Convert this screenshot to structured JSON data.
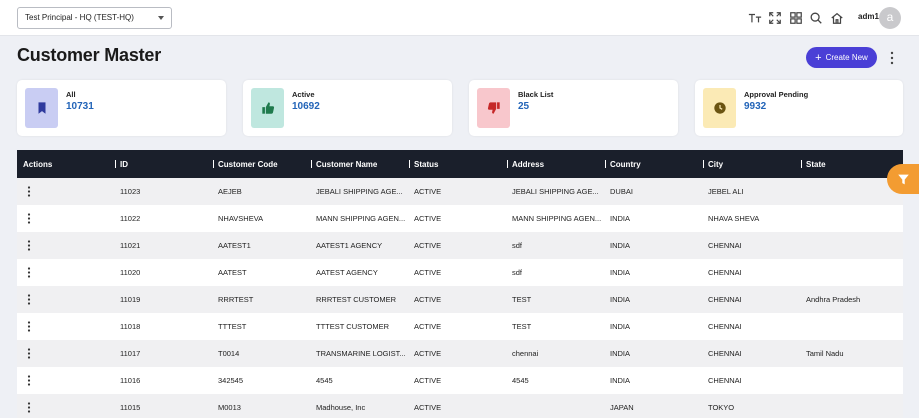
{
  "header": {
    "principal_value": "Test Principal - HQ  (TEST-HQ)",
    "username": "adm1",
    "avatar_initial": "a",
    "icons": [
      "text-size-icon",
      "fullscreen-icon",
      "apps-grid-icon",
      "search-icon",
      "home-icon"
    ]
  },
  "page": {
    "title": "Customer Master",
    "create_label": "Create New"
  },
  "cards": [
    {
      "label": "All",
      "value": "10731",
      "icon": "bookmark-icon",
      "bg": "#c9cdf3",
      "fg": "#2f3a9e"
    },
    {
      "label": "Active",
      "value": "10692",
      "icon": "thumbs-up-icon",
      "bg": "#bfe7df",
      "fg": "#1f7a4d"
    },
    {
      "label": "Black List",
      "value": "25",
      "icon": "thumbs-down-icon",
      "bg": "#f8c7cc",
      "fg": "#c62828"
    },
    {
      "label": "Approval Pending",
      "value": "9932",
      "icon": "clock-icon",
      "bg": "#fbeab5",
      "fg": "#6b5411"
    }
  ],
  "table": {
    "columns": [
      "Actions",
      "ID",
      "Customer Code",
      "Customer Name",
      "Status",
      "Address",
      "Country",
      "City",
      "State"
    ],
    "rows": [
      [
        "11023",
        "AEJEB",
        "JEBALI SHIPPING AGE...",
        "ACTIVE",
        "JEBALI SHIPPING AGE...",
        "DUBAI",
        "JEBEL ALI",
        ""
      ],
      [
        "11022",
        "NHAVSHEVA",
        "MANN SHIPPING AGEN...",
        "ACTIVE",
        "MANN SHIPPING AGEN...",
        "INDIA",
        "NHAVA SHEVA",
        ""
      ],
      [
        "11021",
        "AATEST1",
        "AATEST1 AGENCY",
        "ACTIVE",
        "sdf",
        "INDIA",
        "CHENNAI",
        ""
      ],
      [
        "11020",
        "AATEST",
        "AATEST AGENCY",
        "ACTIVE",
        "sdf",
        "INDIA",
        "CHENNAI",
        ""
      ],
      [
        "11019",
        "RRRTEST",
        "RRRTEST CUSTOMER",
        "ACTIVE",
        "TEST",
        "INDIA",
        "CHENNAI",
        "Andhra Pradesh"
      ],
      [
        "11018",
        "TTTEST",
        "TTTEST CUSTOMER",
        "ACTIVE",
        "TEST",
        "INDIA",
        "CHENNAI",
        ""
      ],
      [
        "11017",
        "T0014",
        "TRANSMARINE LOGIST...",
        "ACTIVE",
        "chennai",
        "INDIA",
        "CHENNAI",
        "Tamil Nadu"
      ],
      [
        "11016",
        "342545",
        "4545",
        "ACTIVE",
        "4545",
        "INDIA",
        "CHENNAI",
        ""
      ],
      [
        "11015",
        "M0013",
        "Madhouse, Inc",
        "ACTIVE",
        "",
        "JAPAN",
        "TOKYO",
        ""
      ]
    ]
  }
}
